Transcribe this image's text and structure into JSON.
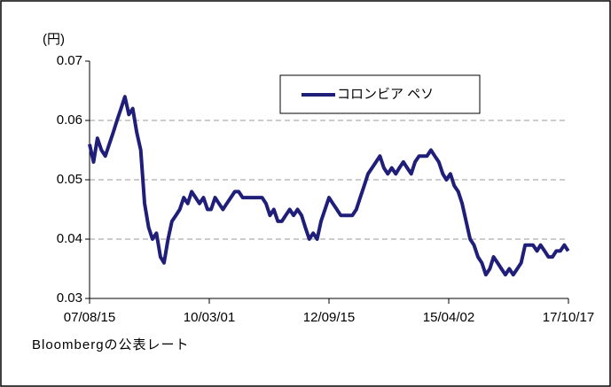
{
  "chart_data": {
    "type": "line",
    "y_axis_label": "(円)",
    "footnote": "Bloombergの公表レート",
    "x": [
      "07/08/15",
      "07/09/15",
      "07/10/15",
      "07/11/15",
      "07/12/15",
      "08/01/15",
      "08/02/15",
      "08/03/15",
      "08/04/15",
      "08/05/15",
      "08/06/15",
      "08/07/15",
      "08/08/15",
      "08/09/15",
      "08/10/15",
      "08/11/15",
      "08/12/15",
      "09/01/15",
      "09/02/15",
      "09/03/15",
      "09/04/15",
      "09/05/15",
      "09/06/15",
      "09/07/15",
      "09/08/15",
      "09/09/15",
      "09/10/15",
      "09/11/15",
      "09/12/15",
      "10/01/15",
      "10/02/15",
      "10/03/15",
      "10/04/15",
      "10/05/15",
      "10/06/15",
      "10/07/15",
      "10/08/15",
      "10/09/15",
      "10/10/15",
      "10/11/15",
      "10/12/15",
      "11/01/15",
      "11/02/15",
      "11/03/15",
      "11/04/15",
      "11/05/15",
      "11/06/15",
      "11/07/15",
      "11/08/15",
      "11/09/15",
      "11/10/15",
      "11/11/15",
      "11/12/15",
      "12/01/15",
      "12/02/15",
      "12/03/15",
      "12/04/15",
      "12/05/15",
      "12/06/15",
      "12/07/15",
      "12/08/15",
      "12/09/15",
      "12/10/15",
      "12/11/15",
      "12/12/15",
      "13/01/15",
      "13/02/15",
      "13/03/15",
      "13/04/15",
      "13/05/15",
      "13/06/15",
      "13/07/15",
      "13/08/15",
      "13/09/15",
      "13/10/15",
      "13/11/15",
      "13/12/15",
      "14/01/15",
      "14/02/15",
      "14/03/15",
      "14/04/15",
      "14/05/15",
      "14/06/15",
      "14/07/15",
      "14/08/15",
      "14/09/15",
      "14/10/15",
      "14/11/15",
      "14/12/15",
      "15/01/15",
      "15/02/15",
      "15/03/15",
      "15/04/15",
      "15/05/15",
      "15/06/15",
      "15/07/15",
      "15/08/15",
      "15/09/15",
      "15/10/15",
      "15/11/15",
      "15/12/15",
      "16/01/15",
      "16/02/15",
      "16/03/15",
      "16/04/15",
      "16/05/15",
      "16/06/15",
      "16/07/15",
      "16/08/15",
      "16/09/15",
      "16/10/15",
      "16/11/15",
      "16/12/15",
      "17/01/15",
      "17/02/15",
      "17/03/15",
      "17/04/15",
      "17/05/15",
      "17/06/15",
      "17/07/15",
      "17/08/15",
      "17/09/15",
      "17/10/15"
    ],
    "series": [
      {
        "name": "コロンビア ペソ",
        "color": "#1f1f7a",
        "values": [
          0.056,
          0.053,
          0.057,
          0.055,
          0.054,
          0.056,
          0.058,
          0.06,
          0.062,
          0.064,
          0.061,
          0.062,
          0.058,
          0.055,
          0.046,
          0.042,
          0.04,
          0.041,
          0.037,
          0.036,
          0.04,
          0.043,
          0.044,
          0.045,
          0.047,
          0.046,
          0.048,
          0.047,
          0.046,
          0.047,
          0.045,
          0.045,
          0.047,
          0.046,
          0.045,
          0.046,
          0.047,
          0.048,
          0.048,
          0.047,
          0.047,
          0.047,
          0.047,
          0.047,
          0.047,
          0.046,
          0.044,
          0.045,
          0.043,
          0.043,
          0.044,
          0.045,
          0.044,
          0.045,
          0.044,
          0.042,
          0.04,
          0.041,
          0.04,
          0.043,
          0.045,
          0.047,
          0.046,
          0.045,
          0.044,
          0.044,
          0.044,
          0.044,
          0.045,
          0.047,
          0.049,
          0.051,
          0.052,
          0.053,
          0.054,
          0.052,
          0.051,
          0.052,
          0.051,
          0.052,
          0.053,
          0.052,
          0.051,
          0.053,
          0.054,
          0.054,
          0.054,
          0.055,
          0.054,
          0.053,
          0.051,
          0.05,
          0.051,
          0.049,
          0.048,
          0.046,
          0.043,
          0.04,
          0.039,
          0.037,
          0.036,
          0.034,
          0.035,
          0.037,
          0.036,
          0.035,
          0.034,
          0.035,
          0.034,
          0.035,
          0.036,
          0.039,
          0.039,
          0.039,
          0.038,
          0.039,
          0.038,
          0.037,
          0.037,
          0.038,
          0.038,
          0.039,
          0.038
        ]
      }
    ],
    "xlim": [
      "07/08/15",
      "17/10/17"
    ],
    "xticks": [
      "07/08/15",
      "10/03/01",
      "12/09/15",
      "15/04/02",
      "17/10/17"
    ],
    "ylim": [
      0.03,
      0.07
    ],
    "yticks": [
      0.03,
      0.04,
      0.05,
      0.06,
      0.07
    ],
    "grid": true
  }
}
